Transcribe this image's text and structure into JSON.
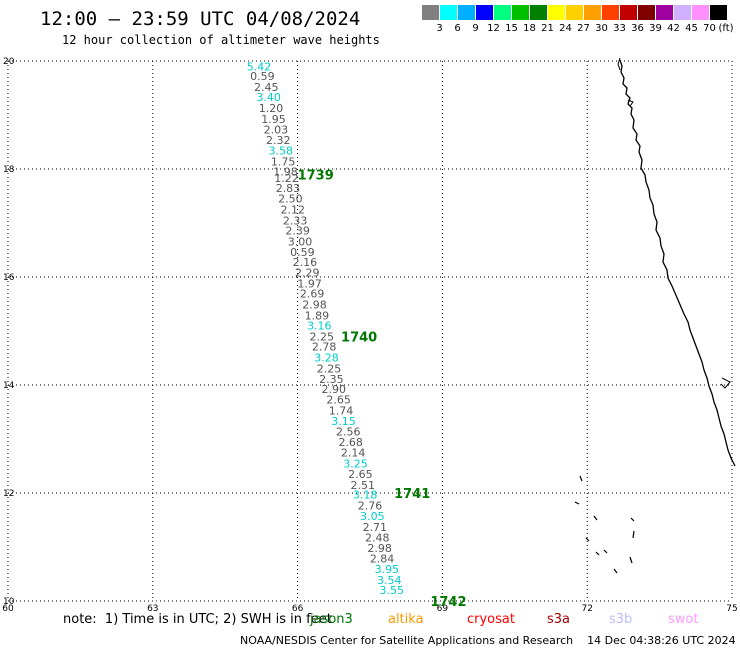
{
  "header": {
    "title": "12:00 — 23:59 UTC 04/08/2024",
    "subtitle": "12 hour collection of altimeter wave heights"
  },
  "scale": {
    "colors": [
      "#808080",
      "#00ffff",
      "#00b0ff",
      "#0000ff",
      "#00ff80",
      "#00c000",
      "#008000",
      "#ffff00",
      "#ffd000",
      "#ffa000",
      "#ff4000",
      "#c00000",
      "#800000",
      "#a000a0",
      "#d0b0ff",
      "#ff90ff",
      "#000000"
    ],
    "ticks": [
      "3",
      "6",
      "9",
      "12",
      "15",
      "18",
      "21",
      "24",
      "27",
      "30",
      "33",
      "36",
      "39",
      "42",
      "45",
      "70"
    ],
    "unit": "(ft)"
  },
  "axes": {
    "x_ticks": [
      "60",
      "63",
      "66",
      "69",
      "72",
      "75"
    ],
    "y_ticks": [
      "20",
      "18",
      "16",
      "14",
      "12",
      "10"
    ]
  },
  "passes": [
    {
      "label": "1739",
      "lon": 66.0,
      "lat": 17.9
    },
    {
      "label": "1740",
      "lon": 66.9,
      "lat": 14.9
    },
    {
      "label": "1741",
      "lon": 68.0,
      "lat": 12.0
    },
    {
      "label": "1742",
      "lon": 68.75,
      "lat": 10.0
    }
  ],
  "observations": [
    {
      "v": "5.42",
      "c": "#00cccc",
      "lon": 65.2,
      "lat": 19.9
    },
    {
      "v": "0.59",
      "lon": 65.27,
      "lat": 19.72
    },
    {
      "v": "2.45",
      "lon": 65.35,
      "lat": 19.52
    },
    {
      "v": "3.40",
      "c": "#00cccc",
      "lon": 65.4,
      "lat": 19.33
    },
    {
      "v": "1.20",
      "lon": 65.45,
      "lat": 19.13
    },
    {
      "v": "1.95",
      "lon": 65.5,
      "lat": 18.93
    },
    {
      "v": "2.03",
      "lon": 65.55,
      "lat": 18.73
    },
    {
      "v": "2.32",
      "lon": 65.6,
      "lat": 18.54
    },
    {
      "v": "3.58",
      "c": "#00cccc",
      "lon": 65.65,
      "lat": 18.34
    },
    {
      "v": "1.75",
      "lon": 65.7,
      "lat": 18.14
    },
    {
      "v": "1.98",
      "lon": 65.75,
      "lat": 17.95
    },
    {
      "v": "1.22",
      "lon": 65.77,
      "lat": 17.83
    },
    {
      "v": "2.83",
      "lon": 65.8,
      "lat": 17.65
    },
    {
      "v": "2.50",
      "lon": 65.85,
      "lat": 17.45
    },
    {
      "v": "2.12",
      "lon": 65.9,
      "lat": 17.25
    },
    {
      "v": "2.33",
      "lon": 65.95,
      "lat": 17.05
    },
    {
      "v": "2.39",
      "lon": 66.0,
      "lat": 16.86
    },
    {
      "v": "3.00",
      "lon": 66.05,
      "lat": 16.66
    },
    {
      "v": "0.59",
      "lon": 66.1,
      "lat": 16.46
    },
    {
      "v": "2.16",
      "lon": 66.15,
      "lat": 16.28
    },
    {
      "v": "2.29",
      "lon": 66.2,
      "lat": 16.08
    },
    {
      "v": "1.97",
      "lon": 66.25,
      "lat": 15.88
    },
    {
      "v": "2.69",
      "lon": 66.3,
      "lat": 15.69
    },
    {
      "v": "2.98",
      "lon": 66.35,
      "lat": 15.49
    },
    {
      "v": "1.89",
      "lon": 66.4,
      "lat": 15.29
    },
    {
      "v": "3.16",
      "c": "#00cccc",
      "lon": 66.45,
      "lat": 15.1
    },
    {
      "v": "2.25",
      "lon": 66.5,
      "lat": 14.9
    },
    {
      "v": "2.78",
      "lon": 66.55,
      "lat": 14.71
    },
    {
      "v": "3.28",
      "c": "#00cccc",
      "lon": 66.6,
      "lat": 14.51
    },
    {
      "v": "2.25",
      "lon": 66.65,
      "lat": 14.31
    },
    {
      "v": "2.35",
      "lon": 66.7,
      "lat": 14.11
    },
    {
      "v": "2.90",
      "lon": 66.75,
      "lat": 13.93
    },
    {
      "v": "2.65",
      "lon": 66.85,
      "lat": 13.73
    },
    {
      "v": "1.74",
      "lon": 66.9,
      "lat": 13.53
    },
    {
      "v": "3.15",
      "c": "#00cccc",
      "lon": 66.95,
      "lat": 13.33
    },
    {
      "v": "2.56",
      "lon": 67.05,
      "lat": 13.14
    },
    {
      "v": "2.68",
      "lon": 67.1,
      "lat": 12.94
    },
    {
      "v": "2.14",
      "lon": 67.15,
      "lat": 12.75
    },
    {
      "v": "3.25",
      "c": "#00cccc",
      "lon": 67.2,
      "lat": 12.55
    },
    {
      "v": "2.65",
      "lon": 67.3,
      "lat": 12.35
    },
    {
      "v": "2.51",
      "lon": 67.35,
      "lat": 12.15
    },
    {
      "v": "3.18",
      "c": "#00cccc",
      "lon": 67.4,
      "lat": 11.97
    },
    {
      "v": "2.76",
      "lon": 67.5,
      "lat": 11.77
    },
    {
      "v": "3.05",
      "c": "#00cccc",
      "lon": 67.55,
      "lat": 11.57
    },
    {
      "v": "2.71",
      "lon": 67.6,
      "lat": 11.37
    },
    {
      "v": "2.48",
      "lon": 67.65,
      "lat": 11.18
    },
    {
      "v": "2.98",
      "lon": 67.7,
      "lat": 10.98
    },
    {
      "v": "2.84",
      "lon": 67.75,
      "lat": 10.79
    },
    {
      "v": "3.95",
      "c": "#00cccc",
      "lon": 67.85,
      "lat": 10.59
    },
    {
      "v": "3.54",
      "c": "#00cccc",
      "lon": 67.9,
      "lat": 10.39
    },
    {
      "v": "3.55",
      "c": "#00cccc",
      "lon": 67.95,
      "lat": 10.2
    }
  ],
  "footer": {
    "note": "note:  1) Time is in UTC; 2) SWH is in feet",
    "satellites": [
      {
        "name": "jason3",
        "color": "#007700"
      },
      {
        "name": "altika",
        "color": "#ff9900"
      },
      {
        "name": "cryosat",
        "color": "#ff0000"
      },
      {
        "name": "s3a",
        "color": "#aa0000"
      },
      {
        "name": "s3b",
        "color": "#bbbbff"
      },
      {
        "name": "swot",
        "color": "#ff99ff"
      }
    ],
    "credit": "NOAA/NESDIS Center for Satellite Applications and Research    14 Dec 04:38:26 UTC 2024"
  }
}
